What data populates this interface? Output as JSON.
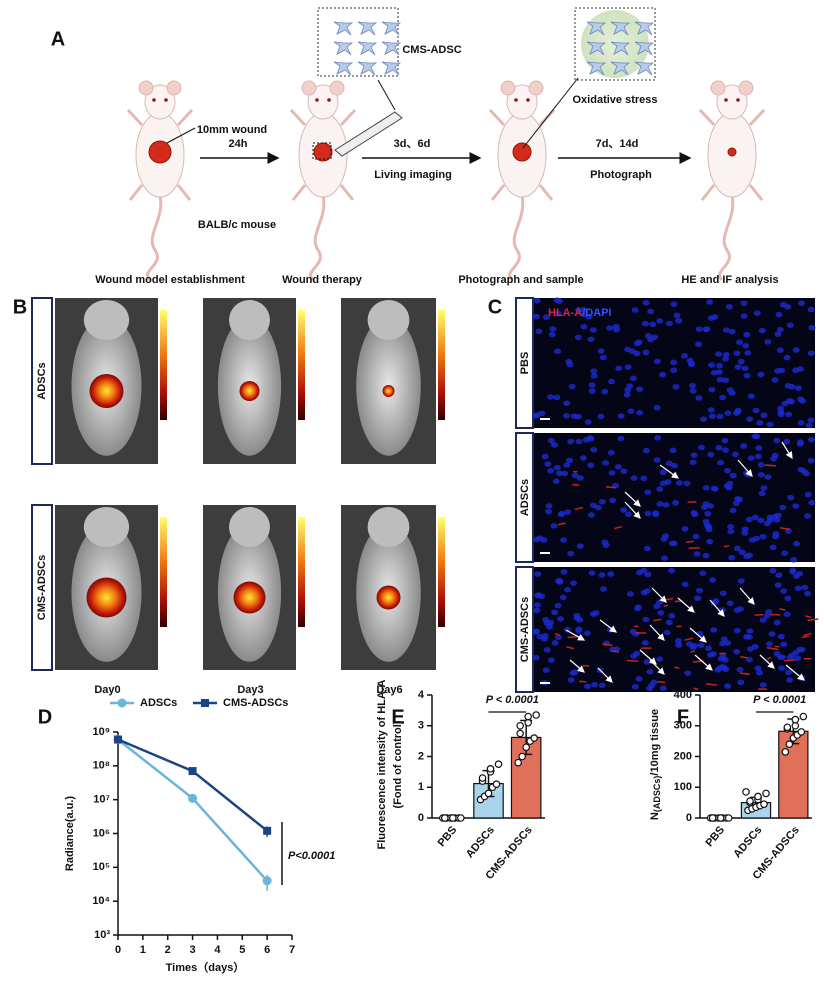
{
  "panels": {
    "A": {
      "label": "A",
      "box_label": "CMS-ADSC",
      "wound": "10mm wound",
      "step1": "24h",
      "strain": "BALB/c mouse",
      "step2_top": "3d、6d",
      "step2_bottom": "Living imaging",
      "box2_label": "Oxidative stress",
      "step3_top": "7d、14d",
      "step3_bottom": "Photograph",
      "stages": [
        "Wound model establishment",
        "Wound therapy",
        "Photograph and sample",
        "HE and IF analysis"
      ]
    },
    "B": {
      "label": "B",
      "rows": [
        "ADSCs",
        "CMS-ADSCs"
      ],
      "columns": [
        "Day0",
        "Day3",
        "Day6"
      ]
    },
    "C": {
      "label": "C",
      "stain": [
        "HLA-A",
        "/DAPI"
      ],
      "rows": [
        "PBS",
        "ADSCs",
        "CMS-ADSCs"
      ]
    }
  },
  "chart_data": [
    {
      "panel": "D",
      "type": "line",
      "log_y": true,
      "x_label": "Times（days）",
      "y_label": "Radiance(a.u.)",
      "x": [
        0,
        3,
        6
      ],
      "xlim": [
        0,
        7
      ],
      "xticks": [
        0,
        1,
        2,
        3,
        4,
        5,
        6,
        7
      ],
      "ylim": [
        1000,
        1000000000
      ],
      "yticks": [
        {
          "value": 1000,
          "label": "10³"
        },
        {
          "value": 10000,
          "label": "10⁴"
        },
        {
          "value": 100000,
          "label": "10⁵"
        },
        {
          "value": 1000000,
          "label": "10⁶"
        },
        {
          "value": 10000000,
          "label": "10⁷"
        },
        {
          "value": 100000000,
          "label": "10⁸"
        },
        {
          "value": 1000000000,
          "label": "10⁹"
        }
      ],
      "series": [
        {
          "name": "ADSCs",
          "color": "#6cb4d8",
          "marker": "circle",
          "values": [
            600000000,
            11000000,
            40000
          ],
          "errors": [
            0,
            0,
            20000
          ]
        },
        {
          "name": "CMS-ADSCs",
          "color": "#1b4485",
          "marker": "square",
          "values": [
            600000000,
            70000000,
            1200000
          ],
          "errors": [
            0,
            0,
            400000
          ]
        }
      ],
      "annotation": "P<0.0001"
    },
    {
      "panel": "E",
      "type": "bar",
      "categories": [
        "PBS",
        "ADSCs",
        "CMS-ADSCs"
      ],
      "values": [
        0,
        1.12,
        2.62
      ],
      "errors": [
        0,
        0.42,
        0.55
      ],
      "colors": [
        "#ffffff",
        "#a9d4ec",
        "#e0705a"
      ],
      "points": [
        [
          0,
          0,
          0,
          0,
          0,
          0,
          0,
          0,
          0,
          0
        ],
        [
          0.6,
          0.7,
          0.8,
          1.0,
          1.1,
          1.2,
          1.3,
          1.5,
          1.6,
          1.75
        ],
        [
          1.8,
          2.0,
          2.3,
          2.5,
          2.6,
          2.75,
          3.0,
          3.1,
          3.3,
          3.35
        ]
      ],
      "ylim": [
        0,
        4
      ],
      "yticks": [
        0,
        1,
        2,
        3,
        4
      ],
      "y_label": [
        "Fluorescence intensity of HLA-A",
        "(Fond of control)"
      ],
      "annotation": "P < 0.0001"
    },
    {
      "panel": "F",
      "type": "bar",
      "categories": [
        "PBS",
        "ADSCs",
        "CMS-ADSCs"
      ],
      "values": [
        0,
        50,
        282
      ],
      "errors": [
        0,
        17,
        40
      ],
      "colors": [
        "#ffffff",
        "#a9d4ec",
        "#e0705a"
      ],
      "points": [
        [
          0,
          0,
          0,
          0,
          0,
          0,
          0,
          0,
          0,
          0
        ],
        [
          25,
          30,
          35,
          40,
          45,
          50,
          55,
          60,
          70,
          80,
          85
        ],
        [
          215,
          240,
          260,
          270,
          280,
          290,
          295,
          300,
          320,
          330
        ]
      ],
      "ylim": [
        0,
        400
      ],
      "yticks": [
        0,
        100,
        200,
        300,
        400
      ],
      "y_label": {
        "main": "N",
        "sub": "(ADSCs)",
        "rest": "/10mg tissue"
      },
      "annotation": "P < 0.0001"
    }
  ]
}
